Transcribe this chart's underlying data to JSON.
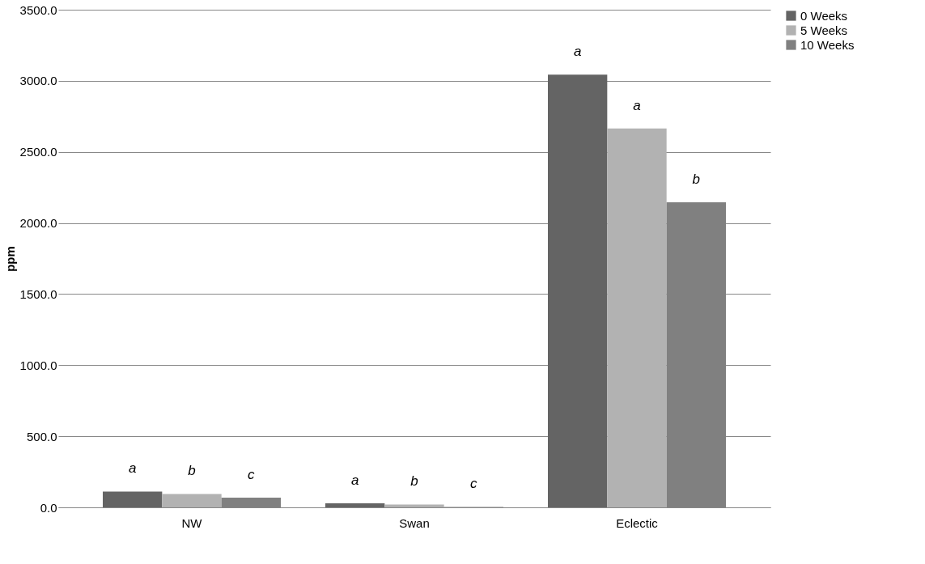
{
  "chart_data": {
    "type": "bar",
    "ylabel": "ppm",
    "categories": [
      "NW",
      "Swan",
      "Eclectic"
    ],
    "series": [
      {
        "name": "0 Weeks",
        "color": "#646464",
        "values": [
          111,
          29,
          3044
        ],
        "value_labels": [
          "a",
          "a",
          "a"
        ]
      },
      {
        "name": "5 Weeks",
        "color": "#b2b2b2",
        "values": [
          94,
          20,
          2665
        ],
        "value_labels": [
          "b",
          "b",
          "a"
        ]
      },
      {
        "name": "10 Weeks",
        "color": "#808080",
        "values": [
          69,
          3,
          2146
        ],
        "value_labels": [
          "c",
          "c",
          "b"
        ]
      }
    ],
    "ylim": [
      0,
      3500
    ],
    "yticks": [
      {
        "value": 0,
        "label": "0.0"
      },
      {
        "value": 500,
        "label": "500.0"
      },
      {
        "value": 1000,
        "label": "1000.0"
      },
      {
        "value": 1500,
        "label": "1500.0"
      },
      {
        "value": 2000,
        "label": "2000.0"
      },
      {
        "value": 2500,
        "label": "2500.0"
      },
      {
        "value": 3000,
        "label": "3000.0"
      },
      {
        "value": 3500,
        "label": "3500.0"
      }
    ],
    "grid": "y",
    "legend": "right"
  }
}
